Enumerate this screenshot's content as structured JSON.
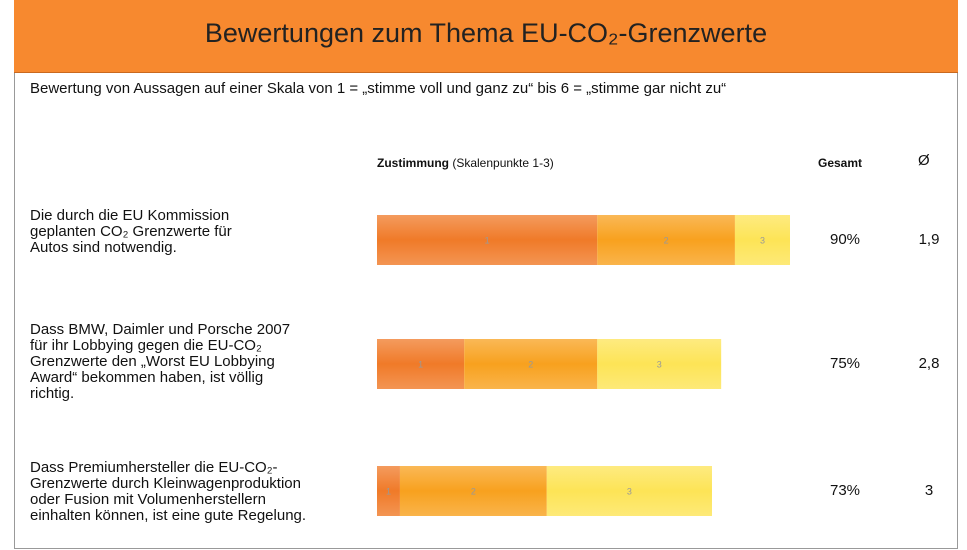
{
  "chart_data": {
    "type": "bar",
    "orientation": "horizontal",
    "stacked": true,
    "title": "Bewertungen zum Thema EU-CO₂-Grenzwerte",
    "subtitle": "Bewertung von Aussagen auf einer Skala von 1 = „stimme voll und ganz zu“ bis 6 = „stimme gar nicht zu“",
    "header_bold": "Zustimmung",
    "header_rest": "(Skalenpunkte 1-3)",
    "total_header": "Gesamt",
    "average_header": "Ø",
    "categories": [
      "Die durch die EU Kommission\ngeplanten CO₂ Grenzwerte für\nAutos sind notwendig.",
      "Dass BMW, Daimler und Porsche 2007\nfür ihr Lobbying gegen die EU-CO₂\nGrenzwerte den „Worst EU Lobbying\nAward“ bekommen haben, ist völlig\nrichtig.",
      "Dass Premiumhersteller die EU-CO₂-\nGrenzwerte durch Kleinwagenproduktion\noder Fusion mit Volumenherstellern\neinhalten können, ist eine gute Regelung."
    ],
    "series": [
      {
        "name": "1",
        "color": "#f07a28",
        "values": [
          48,
          19,
          5
        ]
      },
      {
        "name": "2",
        "color": "#f8a11e",
        "values": [
          30,
          29,
          32
        ]
      },
      {
        "name": "3",
        "color": "#fde456",
        "values": [
          12,
          27,
          36
        ]
      }
    ],
    "totals": {
      "values": [
        90,
        75,
        73
      ],
      "value_labels": [
        "90%",
        "75%",
        "73%"
      ]
    },
    "averages": {
      "values": [
        1.9,
        2.8,
        3
      ],
      "value_labels": [
        "1,9",
        "2,8",
        "3"
      ]
    }
  }
}
